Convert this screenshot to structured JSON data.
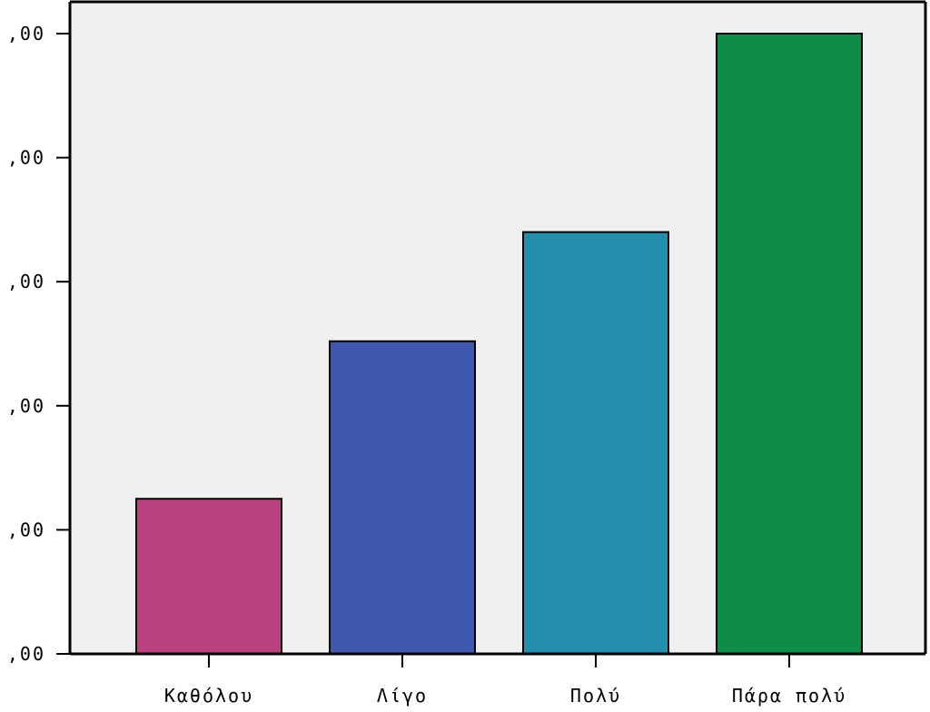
{
  "chart_data": {
    "type": "bar",
    "categories": [
      "Καθόλου",
      "Λίγο",
      "Πολύ",
      "Πάρα πολύ"
    ],
    "values": [
      6.25,
      12.6,
      17.0,
      25.0
    ],
    "ylim": [
      0,
      25
    ],
    "yticks": [
      0,
      5,
      10,
      15,
      20,
      25
    ],
    "ytick_labels": [
      ",00",
      ",00",
      ",00",
      ",00",
      ",00",
      ",00"
    ],
    "grid": false,
    "plot_background": "#f0f0f0",
    "colors": [
      "#bc4180",
      "#3f58ab",
      "#248fad",
      "#0f8c4a"
    ],
    "title": "",
    "xlabel": "",
    "ylabel": ""
  }
}
